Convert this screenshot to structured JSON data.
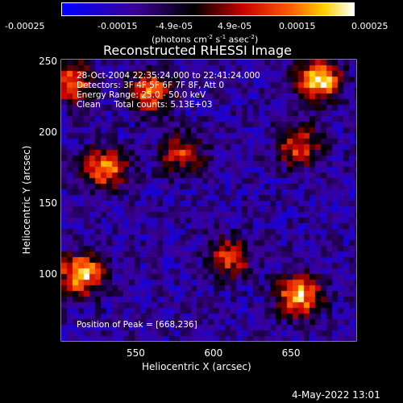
{
  "chart_data": {
    "type": "heatmap",
    "title": "Reconstructed RHESSI Image",
    "xlabel": "Heliocentric X (arcsec)",
    "ylabel": "Heliocentric Y (arcsec)",
    "xlim": [
      502,
      692
    ],
    "ylim": [
      53,
      251
    ],
    "x_ticks": [
      550,
      600,
      650
    ],
    "y_ticks": [
      100,
      150,
      200,
      250
    ],
    "colorbar": {
      "ticks": [
        "-0.00025",
        "-0.00015",
        "-4.9e-05",
        "4.9e-05",
        "0.00015",
        "0.00025"
      ],
      "unit_label_main": "(photons cm",
      "unit_label_exp1": "-2",
      "unit_label_mid": " s",
      "unit_label_exp2": "-1",
      "unit_label_end": " asec",
      "unit_label_exp3": "-2",
      "unit_label_close": ")",
      "range": [
        -0.00025,
        0.00025
      ]
    },
    "annotations": {
      "time": "28-Oct-2004 22:35:24.000 to 22:41:24.000",
      "detectors": "Detectors: 3F 4F 5F 6F 7F 8F, Att 0",
      "energy": "Energy Range: 25.0 - 50.0 keV",
      "clean": "Clean     Total counts: 5.13E+03",
      "peak": "Position of Peak = [668,236]"
    },
    "bright_sources": [
      {
        "x": 668,
        "y": 236,
        "intensity": 0.00025
      },
      {
        "x": 515,
        "y": 100,
        "intensity": 0.00024
      },
      {
        "x": 655,
        "y": 85,
        "intensity": 0.00022
      },
      {
        "x": 530,
        "y": 175,
        "intensity": 0.00019
      },
      {
        "x": 560,
        "y": 228,
        "intensity": 0.00016
      },
      {
        "x": 508,
        "y": 235,
        "intensity": 0.00016
      },
      {
        "x": 655,
        "y": 190,
        "intensity": 0.00013
      },
      {
        "x": 610,
        "y": 112,
        "intensity": 0.00012
      },
      {
        "x": 580,
        "y": 185,
        "intensity": 0.0001
      }
    ]
  },
  "footer": {
    "date": "4-May-2022 13:01"
  }
}
